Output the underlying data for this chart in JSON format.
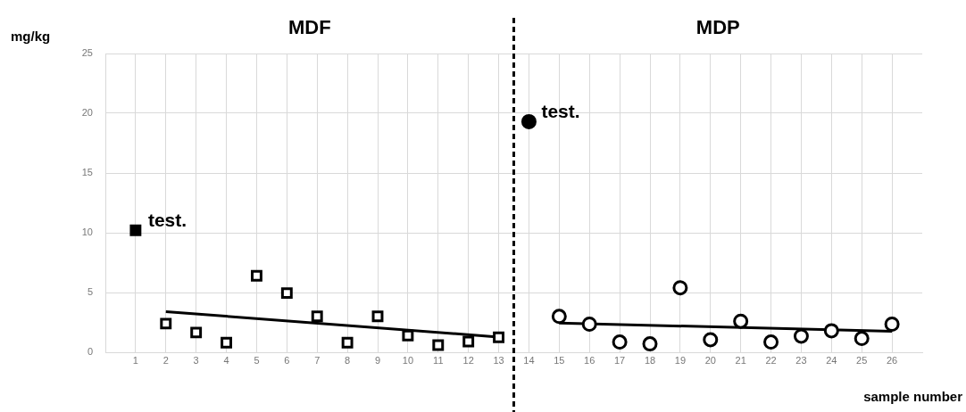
{
  "chart_data": {
    "type": "scatter",
    "xlabel": "sample number",
    "ylabel": "mg/kg",
    "xlim": [
      0,
      27
    ],
    "xticks": [
      1,
      2,
      3,
      4,
      5,
      6,
      7,
      8,
      9,
      10,
      11,
      12,
      13,
      14,
      15,
      16,
      17,
      18,
      19,
      20,
      21,
      22,
      23,
      24,
      25,
      26
    ],
    "ylim": [
      0,
      25
    ],
    "yticks": [
      0,
      5,
      10,
      15,
      20,
      25
    ],
    "grid": true,
    "legend": false,
    "ref_lines": [
      {
        "axis": "x",
        "value": 13.5,
        "line_style": "dashed",
        "color": "#000000"
      }
    ],
    "annotations": [
      "MDF",
      "MDP",
      {
        "text": "test.",
        "x": 1,
        "y": 10.2
      },
      {
        "text": "test.",
        "x": 14,
        "y": 19.3
      }
    ],
    "series": [
      {
        "marker": "square",
        "color": "#000000",
        "x": [
          1
        ],
        "values": [
          10.2
        ]
      },
      {
        "marker": "square",
        "color": "#000000",
        "x": [
          2,
          3,
          4,
          5,
          6,
          7,
          8,
          9,
          10,
          11,
          12,
          13
        ],
        "values": [
          2.4,
          1.65,
          0.8,
          6.4,
          4.95,
          3.0,
          0.8,
          3.0,
          1.4,
          0.6,
          0.9,
          1.25
        ]
      },
      {
        "type": "line",
        "marker": "none",
        "color": "#000000",
        "x": [
          2,
          13
        ],
        "values": [
          3.4,
          1.27
        ]
      },
      {
        "marker": "circle",
        "color": "#000000",
        "x": [
          14
        ],
        "values": [
          19.3
        ]
      },
      {
        "marker": "circle",
        "color": "#000000",
        "x": [
          15,
          16,
          17,
          18,
          19,
          20,
          21,
          22,
          23,
          24,
          25,
          26
        ],
        "values": [
          3.0,
          2.35,
          0.85,
          0.7,
          5.4,
          1.05,
          2.6,
          0.85,
          1.35,
          1.8,
          1.15,
          2.35
        ]
      },
      {
        "type": "line",
        "marker": "none",
        "color": "#000000",
        "x": [
          15,
          26
        ],
        "values": [
          2.45,
          1.75
        ]
      }
    ]
  }
}
